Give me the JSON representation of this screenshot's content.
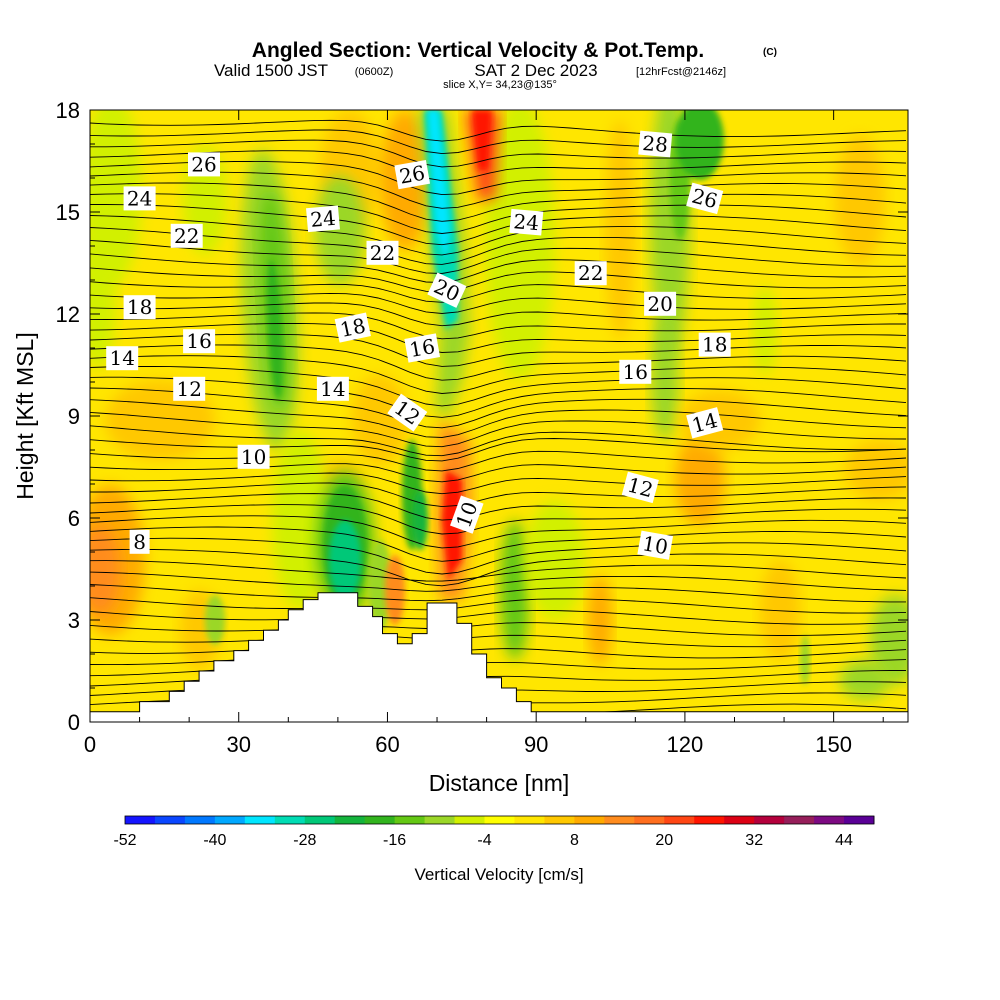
{
  "title": {
    "main": "Angled Section: Vertical Velocity & Pot.Temp.",
    "copyright": "(C)",
    "valid_prefix": "Valid 1500 JST",
    "zulu": "(0600Z)",
    "valid_date": "SAT 2 Dec 2023",
    "forecast": "[12hrFcst@2146z]",
    "slice": "slice X,Y= 34,23@135°"
  },
  "chart_data": {
    "type": "heatmap",
    "xlabel": "Distance [nm]",
    "ylabel": "Height [Kft MSL]",
    "xlim": [
      0,
      165
    ],
    "ylim": [
      0,
      18
    ],
    "xticks": [
      "0",
      "30",
      "60",
      "90",
      "120",
      "150"
    ],
    "xtick_values": [
      0,
      30,
      60,
      90,
      120,
      150
    ],
    "yticks": [
      "0",
      "3",
      "6",
      "9",
      "12",
      "15",
      "18"
    ],
    "ytick_values": [
      0,
      3,
      6,
      9,
      12,
      15,
      18
    ],
    "colorbar": {
      "label": "Vertical Velocity [cm/s]",
      "tick_labels": [
        "-52",
        "-40",
        "-28",
        "-16",
        "-4",
        "8",
        "20",
        "32",
        "44"
      ],
      "tick_values": [
        -52,
        -40,
        -28,
        -16,
        -4,
        8,
        20,
        32,
        44
      ],
      "colors": [
        "#1414ff",
        "#0a46ff",
        "#0078ff",
        "#00a8ff",
        "#00e6ff",
        "#00dcb4",
        "#00c878",
        "#14b43c",
        "#32b41e",
        "#64c814",
        "#9bd728",
        "#d2f000",
        "#ffff00",
        "#ffe600",
        "#ffc800",
        "#ffaa00",
        "#ff8c1e",
        "#ff6e1e",
        "#ff4614",
        "#ff1400",
        "#dc0014",
        "#b4003c",
        "#961e5a",
        "#7d0a82",
        "#5a0096"
      ]
    },
    "terrain_kft": [
      [
        0,
        0.3
      ],
      [
        10,
        0.3
      ],
      [
        10,
        0.6
      ],
      [
        16,
        0.6
      ],
      [
        16,
        0.9
      ],
      [
        19,
        0.9
      ],
      [
        19,
        1.2
      ],
      [
        22,
        1.2
      ],
      [
        22,
        1.5
      ],
      [
        25,
        1.5
      ],
      [
        25,
        1.8
      ],
      [
        29,
        1.8
      ],
      [
        29,
        2.1
      ],
      [
        32,
        2.1
      ],
      [
        32,
        2.4
      ],
      [
        35,
        2.4
      ],
      [
        35,
        2.7
      ],
      [
        38,
        2.7
      ],
      [
        38,
        3.0
      ],
      [
        40,
        3.0
      ],
      [
        40,
        3.3
      ],
      [
        43,
        3.3
      ],
      [
        43,
        3.6
      ],
      [
        46,
        3.6
      ],
      [
        46,
        3.8
      ],
      [
        54,
        3.8
      ],
      [
        54,
        3.4
      ],
      [
        57,
        3.4
      ],
      [
        57,
        3.1
      ],
      [
        59,
        3.1
      ],
      [
        59,
        2.6
      ],
      [
        62,
        2.6
      ],
      [
        62,
        2.3
      ],
      [
        65,
        2.3
      ],
      [
        65,
        2.6
      ],
      [
        68,
        2.6
      ],
      [
        68,
        3.5
      ],
      [
        74,
        3.5
      ],
      [
        74,
        2.9
      ],
      [
        77,
        2.9
      ],
      [
        77,
        2.0
      ],
      [
        80,
        2.0
      ],
      [
        80,
        1.3
      ],
      [
        83,
        1.3
      ],
      [
        83,
        1.0
      ],
      [
        86,
        1.0
      ],
      [
        86,
        0.6
      ],
      [
        89,
        0.6
      ],
      [
        89,
        0.3
      ],
      [
        165,
        0.3
      ]
    ],
    "contour_labels": [
      {
        "text": "26",
        "x": 23,
        "y": 16.4,
        "angle": 0
      },
      {
        "text": "24",
        "x": 10,
        "y": 15.4,
        "angle": 0
      },
      {
        "text": "22",
        "x": 19.5,
        "y": 14.3,
        "angle": 0
      },
      {
        "text": "18",
        "x": 10,
        "y": 12.2,
        "angle": 0
      },
      {
        "text": "16",
        "x": 22,
        "y": 11.2,
        "angle": 0
      },
      {
        "text": "14",
        "x": 6.5,
        "y": 10.7,
        "angle": 0
      },
      {
        "text": "12",
        "x": 20,
        "y": 9.8,
        "angle": 0
      },
      {
        "text": "10",
        "x": 33,
        "y": 7.8,
        "angle": 0
      },
      {
        "text": "8",
        "x": 10,
        "y": 5.3,
        "angle": 0
      },
      {
        "text": "24",
        "x": 47,
        "y": 14.8,
        "angle": -5
      },
      {
        "text": "22",
        "x": 59,
        "y": 13.8,
        "angle": 0
      },
      {
        "text": "18",
        "x": 53,
        "y": 11.6,
        "angle": -12
      },
      {
        "text": "14",
        "x": 49,
        "y": 9.8,
        "angle": 0
      },
      {
        "text": "16",
        "x": 67,
        "y": 11.0,
        "angle": -10
      },
      {
        "text": "12",
        "x": 64,
        "y": 9.1,
        "angle": 35
      },
      {
        "text": "26",
        "x": 65,
        "y": 16.1,
        "angle": -10
      },
      {
        "text": "20",
        "x": 72,
        "y": 12.7,
        "angle": 25
      },
      {
        "text": "10",
        "x": 76,
        "y": 6.1,
        "angle": -70
      },
      {
        "text": "24",
        "x": 88,
        "y": 14.7,
        "angle": 5
      },
      {
        "text": "22",
        "x": 101,
        "y": 13.2,
        "angle": 0
      },
      {
        "text": "28",
        "x": 114,
        "y": 17.0,
        "angle": 5
      },
      {
        "text": "26",
        "x": 124,
        "y": 15.4,
        "angle": 15
      },
      {
        "text": "20",
        "x": 115,
        "y": 12.3,
        "angle": 0
      },
      {
        "text": "18",
        "x": 126,
        "y": 11.1,
        "angle": 0
      },
      {
        "text": "16",
        "x": 110,
        "y": 10.3,
        "angle": 0
      },
      {
        "text": "14",
        "x": 124,
        "y": 8.8,
        "angle": -15
      },
      {
        "text": "12",
        "x": 111,
        "y": 6.9,
        "angle": 15
      },
      {
        "text": "10",
        "x": 114,
        "y": 5.2,
        "angle": 10
      }
    ]
  }
}
